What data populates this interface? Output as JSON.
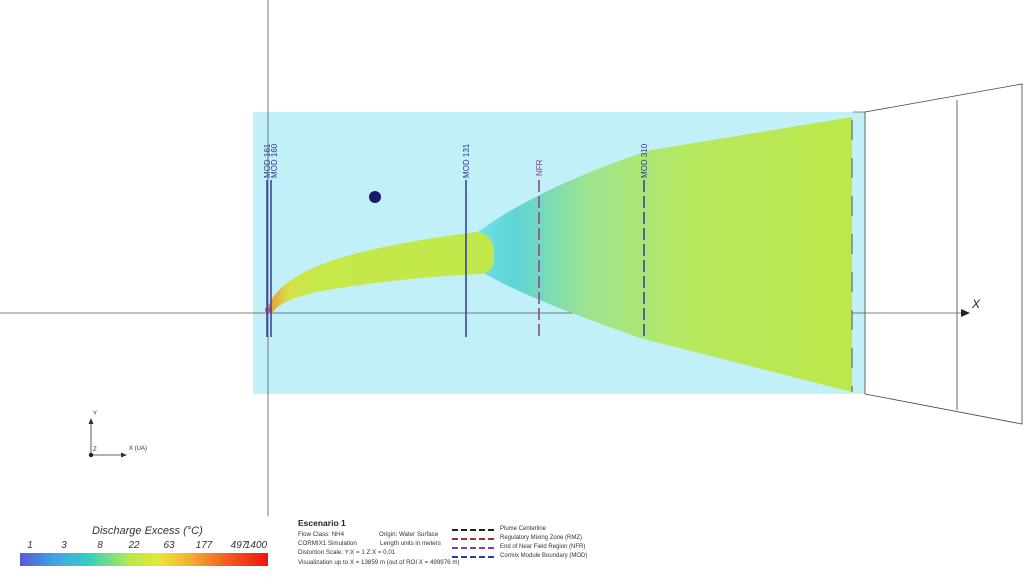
{
  "scene": {
    "mod_labels": [
      "MOD 161",
      "MOD 160",
      "MOD 131",
      "MOD 310"
    ],
    "nfr_label": "NFR",
    "x_axis_label": "X",
    "triad": {
      "y": "Y",
      "z": "Z",
      "x": "X (UA)"
    },
    "colors": {
      "water": "#c2f0f8",
      "plume": "#bdea4a",
      "mod_line": "#3a44a0",
      "nfr_line": "#8a4a9a"
    }
  },
  "colorbar": {
    "title": "Discharge Excess  (°C)",
    "ticks": [
      "1",
      "3",
      "8",
      "22",
      "63",
      "177",
      "497",
      "1400"
    ]
  },
  "info": {
    "title": "Escenario 1",
    "flow_class": "Flow Class: NH4",
    "simulation": "CORMIX1 Simulation",
    "distortion": "Distortion Scale:  Y:X = 1    Z:X = 0,01",
    "visualization": "Visualization up to X = 13859 m (out of ROI X = 499976 m)",
    "origin": "Origin: Water Surface",
    "units": "Length units in meters"
  },
  "legend": [
    {
      "label": "Plume Centerline",
      "color": "#222222"
    },
    {
      "label": "Regulatory Mixing Zone (RMZ)",
      "color": "#a0302a"
    },
    {
      "label": "End of Near Field Region (NFR)",
      "color": "#8a3ab0"
    },
    {
      "label": "Cormix Module Boundary (MOD)",
      "color": "#2a3ab0"
    }
  ]
}
